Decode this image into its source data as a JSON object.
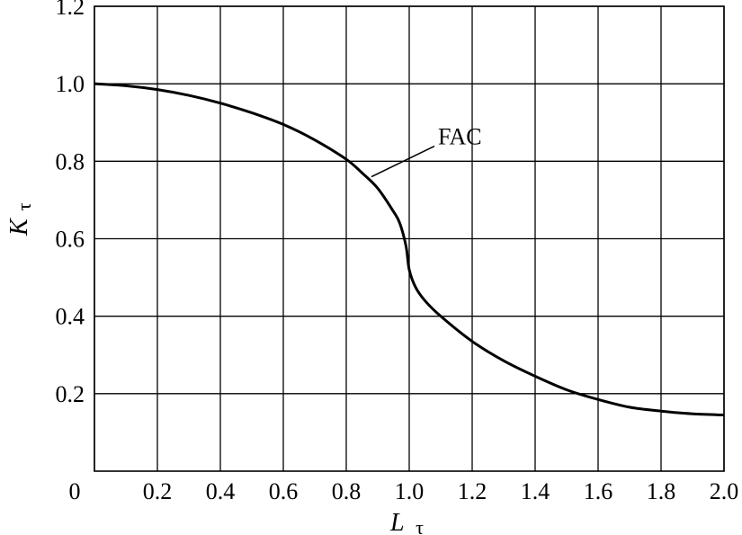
{
  "chart_data": {
    "type": "line",
    "title": "",
    "xlabel": {
      "main": "L",
      "sub": "τ"
    },
    "ylabel": {
      "main": "K",
      "sub": "τ"
    },
    "xlim": [
      0,
      2.0
    ],
    "ylim": [
      0,
      1.2
    ],
    "grid": true,
    "x_ticks": [
      {
        "value": 0,
        "label": "0"
      },
      {
        "value": 0.2,
        "label": "0.2"
      },
      {
        "value": 0.4,
        "label": "0.4"
      },
      {
        "value": 0.6,
        "label": "0.6"
      },
      {
        "value": 0.8,
        "label": "0.8"
      },
      {
        "value": 1.0,
        "label": "1.0"
      },
      {
        "value": 1.2,
        "label": "1.2"
      },
      {
        "value": 1.4,
        "label": "1.4"
      },
      {
        "value": 1.6,
        "label": "1.6"
      },
      {
        "value": 1.8,
        "label": "1.8"
      },
      {
        "value": 2.0,
        "label": "2.0"
      }
    ],
    "y_ticks": [
      {
        "value": 0.2,
        "label": "0.2"
      },
      {
        "value": 0.4,
        "label": "0.4"
      },
      {
        "value": 0.6,
        "label": "0.6"
      },
      {
        "value": 0.8,
        "label": "0.8"
      },
      {
        "value": 1.0,
        "label": "1.0"
      },
      {
        "value": 1.2,
        "label": "1.2"
      }
    ],
    "series": [
      {
        "x": [
          0,
          0.1,
          0.2,
          0.3,
          0.4,
          0.5,
          0.6,
          0.7,
          0.8,
          0.85,
          0.9,
          0.95,
          0.97,
          0.99,
          1.0,
          1.02,
          1.05,
          1.1,
          1.2,
          1.3,
          1.4,
          1.5,
          1.6,
          1.7,
          1.8,
          1.9,
          2.0
        ],
        "y": [
          1.0,
          0.995,
          0.985,
          0.97,
          0.95,
          0.925,
          0.895,
          0.855,
          0.805,
          0.77,
          0.73,
          0.67,
          0.64,
          0.58,
          0.52,
          0.475,
          0.44,
          0.4,
          0.335,
          0.285,
          0.245,
          0.21,
          0.185,
          0.165,
          0.155,
          0.148,
          0.145
        ]
      }
    ],
    "annotations": [
      {
        "text": "FAC",
        "x": 0.88,
        "y": 0.76
      }
    ]
  }
}
